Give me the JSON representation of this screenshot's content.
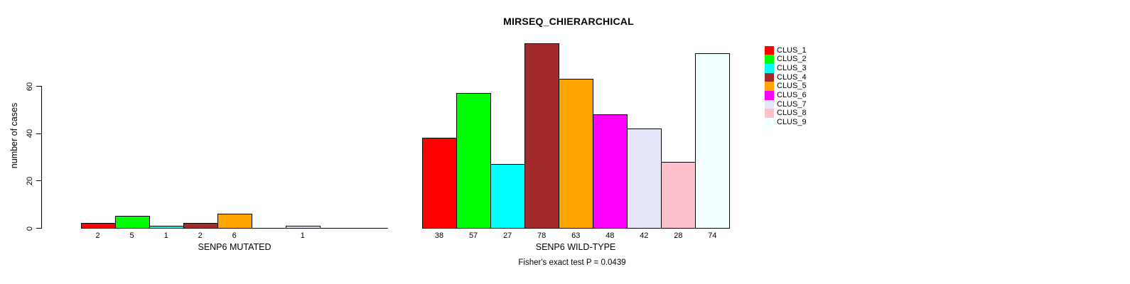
{
  "chart_data": {
    "type": "bar",
    "title": "MIRSEQ_CHIERARCHICAL",
    "ylabel": "number of cases",
    "annotation": "Fisher's exact test P = 0.0439",
    "yticks": [
      0,
      20,
      40,
      60
    ],
    "ylim": [
      0,
      78
    ],
    "grid": false,
    "legend_position": "top-right",
    "legend": [
      {
        "name": "CLUS_1",
        "color": "#FF0000"
      },
      {
        "name": "CLUS_2",
        "color": "#00FF00"
      },
      {
        "name": "CLUS_3",
        "color": "#00FFFF"
      },
      {
        "name": "CLUS_4",
        "color": "#A52A2A"
      },
      {
        "name": "CLUS_5",
        "color": "#FFA500"
      },
      {
        "name": "CLUS_6",
        "color": "#FF00FF"
      },
      {
        "name": "CLUS_7",
        "color": "#E6E6FA"
      },
      {
        "name": "CLUS_8",
        "color": "#FFC0CB"
      },
      {
        "name": "CLUS_9",
        "color": "#F0FFFF"
      }
    ],
    "groups": [
      {
        "xlabel": "SENP6 MUTATED",
        "values": [
          2,
          5,
          1,
          2,
          6,
          0,
          1,
          0,
          0
        ],
        "bar_labels": [
          "2",
          "5",
          "1",
          "2",
          "6",
          "",
          "1",
          "",
          ""
        ]
      },
      {
        "xlabel": "SENP6 WILD-TYPE",
        "values": [
          38,
          57,
          27,
          78,
          63,
          48,
          42,
          28,
          74
        ],
        "bar_labels": [
          "38",
          "57",
          "27",
          "78",
          "63",
          "48",
          "42",
          "28",
          "74"
        ]
      }
    ]
  }
}
